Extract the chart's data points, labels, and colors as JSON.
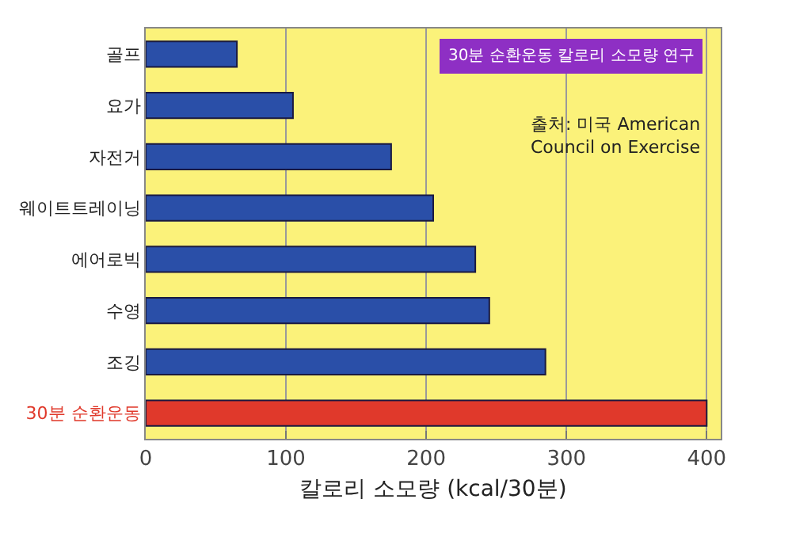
{
  "chart_data": {
    "type": "bar",
    "orientation": "horizontal",
    "title": "30분 순환운동 칼로리 소모량 연구",
    "xlabel": "칼로리 소모량 (kcal/30분)",
    "categories": [
      "골프",
      "요가",
      "자전거",
      "웨이트트레이닝",
      "에어로빅",
      "수영",
      "조깅",
      "30분 순환운동"
    ],
    "values": [
      65,
      105,
      175,
      205,
      235,
      245,
      285,
      400
    ],
    "colors": [
      "#2a4fa8",
      "#2a4fa8",
      "#2a4fa8",
      "#2a4fa8",
      "#2a4fa8",
      "#2a4fa8",
      "#2a4fa8",
      "#e0392b"
    ],
    "xlim": [
      0,
      410
    ],
    "xticks": [
      0,
      100,
      200,
      300,
      400
    ],
    "grid": "x",
    "annotations": [
      "출처: 미국 American Council on Exercise"
    ]
  }
}
